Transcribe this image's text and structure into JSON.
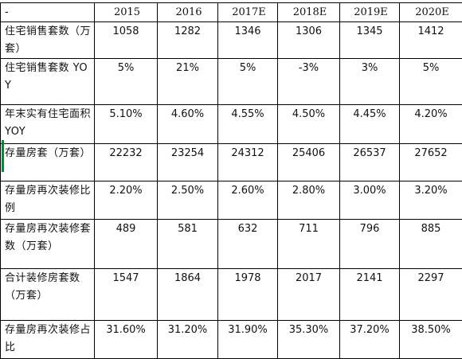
{
  "header": {
    "row_label": "-",
    "years": [
      "2015",
      "2016",
      "2017E",
      "2018E",
      "2019E",
      "2020E"
    ]
  },
  "rows": [
    {
      "label": "住宅销售套数（万套）",
      "values": [
        "1058",
        "1282",
        "1346",
        "1306",
        "1345",
        "1412"
      ]
    },
    {
      "label": "住宅销售套数 YOY",
      "values": [
        "5%",
        "21%",
        "5%",
        "-3%",
        "3%",
        "5%"
      ]
    },
    {
      "label": "年末实有住宅面积YOY",
      "values": [
        "5.10%",
        "4.60%",
        "4.55%",
        "4.50%",
        "4.45%",
        "4.20%"
      ]
    },
    {
      "label": "存量房套（万套）",
      "values": [
        "22232",
        "23254",
        "24312",
        "25406",
        "26537",
        "27652"
      ]
    },
    {
      "label": "存量房再次装修比例",
      "values": [
        "2.20%",
        "2.50%",
        "2.60%",
        "2.80%",
        "3.00%",
        "3.20%"
      ]
    },
    {
      "label": "存量房再次装修套数（万套）",
      "values": [
        "489",
        "581",
        "632",
        "711",
        "796",
        "885"
      ]
    },
    {
      "label": "合计装修房套数（万套）",
      "values": [
        "1547",
        "1864",
        "1978",
        "2017",
        "2141",
        "2297"
      ]
    },
    {
      "label": "存量房再次装修占比",
      "values": [
        "31.60%",
        "31.20%",
        "31.90%",
        "35.30%",
        "37.20%",
        "38.50%"
      ]
    }
  ],
  "colors": {
    "grid_line": "#000000",
    "background": "#ffffff",
    "selection_marker": "#1e7b3c"
  }
}
